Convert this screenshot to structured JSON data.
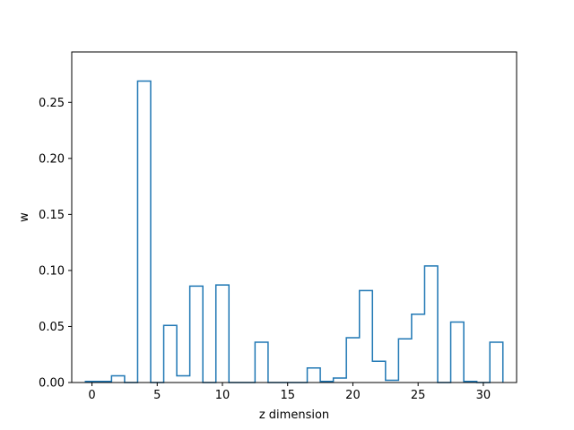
{
  "chart_data": {
    "type": "bar",
    "style": "step",
    "series_color": "#1f77b4",
    "xlabel": "z dimension",
    "ylabel": "w",
    "xlim": [
      -1.55,
      32.55
    ],
    "ylim": [
      0,
      0.295
    ],
    "grid": false,
    "x_ticks": [
      0,
      5,
      10,
      15,
      20,
      25,
      30
    ],
    "x_tick_labels": [
      "0",
      "5",
      "10",
      "15",
      "20",
      "25",
      "30"
    ],
    "y_ticks": [
      0.0,
      0.05,
      0.1,
      0.15,
      0.2,
      0.25
    ],
    "y_tick_labels": [
      "0.00",
      "0.05",
      "0.10",
      "0.15",
      "0.20",
      "0.25"
    ],
    "x": [
      0,
      1,
      2,
      3,
      4,
      5,
      6,
      7,
      8,
      9,
      10,
      11,
      12,
      13,
      14,
      15,
      16,
      17,
      18,
      19,
      20,
      21,
      22,
      23,
      24,
      25,
      26,
      27,
      28,
      29,
      30,
      31
    ],
    "values": [
      0.001,
      0.001,
      0.006,
      0.0,
      0.269,
      0.0,
      0.051,
      0.006,
      0.086,
      0.0,
      0.087,
      0.0,
      0.0,
      0.036,
      0.0,
      0.0,
      0.0,
      0.013,
      0.001,
      0.004,
      0.04,
      0.082,
      0.019,
      0.002,
      0.039,
      0.061,
      0.104,
      0.0,
      0.054,
      0.001,
      0.0,
      0.036
    ]
  }
}
